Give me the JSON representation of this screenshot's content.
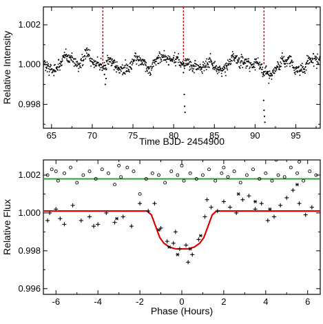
{
  "chart_data": [
    {
      "type": "scatter",
      "xlabel": "Time BJD- 2454900",
      "ylabel": "Relative Intensity",
      "xlim": [
        64,
        98
      ],
      "ylim": [
        0.9968,
        1.0029
      ],
      "xticks": [
        65,
        70,
        75,
        80,
        85,
        90,
        95
      ],
      "xtick_labels": [
        "65",
        "70",
        "75",
        "80",
        "85",
        "90",
        "95"
      ],
      "yticks": [
        0.998,
        1.0,
        1.002
      ],
      "ytick_labels": [
        "0.998",
        "1.000",
        "1.002"
      ],
      "grid": false,
      "series": [
        {
          "marker": "dot",
          "color": "#000000",
          "baseline": 1.0,
          "scatter_amplitude": 0.0005,
          "x_range": [
            64,
            98
          ],
          "points": [
            [
              71.3,
              1.0006
            ],
            [
              71.5,
              0.9995
            ],
            [
              71.6,
              0.999
            ],
            [
              71.7,
              0.9993
            ],
            [
              81.2,
              0.9996
            ],
            [
              81.3,
              0.9985
            ],
            [
              81.35,
              0.9979
            ],
            [
              81.4,
              0.9976
            ],
            [
              91.0,
              0.9995
            ],
            [
              91.05,
              0.9982
            ],
            [
              91.1,
              0.9977
            ],
            [
              91.15,
              0.9974
            ],
            [
              91.2,
              0.9971
            ]
          ]
        }
      ],
      "annotations": [
        {
          "type": "vertical-dashed-line",
          "x": 71.3,
          "color": "#e00000"
        },
        {
          "type": "vertical-dashed-line",
          "x": 81.2,
          "color": "#e00000"
        },
        {
          "type": "vertical-dashed-line",
          "x": 91.1,
          "color": "#e00000"
        }
      ]
    },
    {
      "type": "scatter",
      "xlabel": "Phase (Hours)",
      "ylabel": "Relative Flux",
      "xlim": [
        -6.6,
        6.6
      ],
      "ylim": [
        0.9957,
        1.0028
      ],
      "xticks": [
        -6,
        -4,
        -2,
        0,
        2,
        4,
        6
      ],
      "xtick_labels": [
        "-6",
        "-4",
        "-2",
        "0",
        "2",
        "4",
        "6"
      ],
      "yticks": [
        0.996,
        0.998,
        1.0,
        1.002
      ],
      "ytick_labels": [
        "0.996",
        "0.998",
        "1.000",
        "1.002"
      ],
      "grid": false,
      "series": [
        {
          "marker": "open-circle",
          "color": "#000000",
          "points": [
            [
              -6.4,
              1.002
            ],
            [
              -6.2,
              1.0023
            ],
            [
              -5.9,
              1.0017
            ],
            [
              -5.6,
              1.0021
            ],
            [
              -5.3,
              1.0024
            ],
            [
              -5.0,
              1.0016
            ],
            [
              -4.7,
              1.002
            ],
            [
              -4.4,
              1.0022
            ],
            [
              -4.1,
              1.0018
            ],
            [
              -3.8,
              1.0023
            ],
            [
              -3.5,
              1.0021
            ],
            [
              -3.2,
              1.0015
            ],
            [
              -2.9,
              1.0019
            ],
            [
              -2.6,
              1.0024
            ],
            [
              -2.3,
              1.0022
            ],
            [
              -2.0,
              1.001
            ],
            [
              -1.7,
              1.0018
            ],
            [
              -1.4,
              1.0021
            ],
            [
              -1.1,
              1.002
            ],
            [
              -0.8,
              1.0016
            ],
            [
              -0.5,
              1.0022
            ],
            [
              -0.2,
              1.002
            ],
            [
              0.1,
              1.0017
            ],
            [
              0.4,
              1.0021
            ],
            [
              0.7,
              1.0018
            ],
            [
              1.0,
              1.002
            ],
            [
              1.3,
              1.0023
            ],
            [
              1.6,
              1.0017
            ],
            [
              1.9,
              1.0021
            ],
            [
              2.2,
              1.0019
            ],
            [
              2.5,
              1.0022
            ],
            [
              2.8,
              1.0016
            ],
            [
              3.1,
              1.002
            ],
            [
              3.4,
              1.0023
            ],
            [
              3.7,
              1.0018
            ],
            [
              4.0,
              1.0021
            ],
            [
              4.3,
              1.0017
            ],
            [
              4.6,
              1.002
            ],
            [
              4.9,
              1.0019
            ],
            [
              5.2,
              1.0024
            ],
            [
              5.5,
              1.0021
            ],
            [
              5.8,
              1.0017
            ],
            [
              6.1,
              1.0022
            ],
            [
              6.4,
              1.002
            ],
            [
              5.6,
              1.0027
            ],
            [
              4.5,
              1.0028
            ],
            [
              0.0,
              1.0025
            ],
            [
              -3.0,
              1.0025
            ],
            [
              -6.0,
              1.0022
            ],
            [
              2.0,
              1.0024
            ]
          ]
        },
        {
          "marker": "plus",
          "color": "#000000",
          "points": [
            [
              -6.4,
              0.9996
            ],
            [
              -6.0,
              1.0002
            ],
            [
              -5.6,
              0.9994
            ],
            [
              -5.2,
              1.0004
            ],
            [
              -4.8,
              0.9996
            ],
            [
              -4.4,
              0.9998
            ],
            [
              -4.0,
              0.9994
            ],
            [
              -3.6,
              1.0
            ],
            [
              -3.2,
              0.9995
            ],
            [
              -2.8,
              0.9998
            ],
            [
              -2.4,
              0.9993
            ],
            [
              -2.0,
              1.0005
            ],
            [
              -1.6,
              1.0001
            ],
            [
              -1.3,
              1.0005
            ],
            [
              -1.0,
              0.9992
            ],
            [
              -0.7,
              0.9985
            ],
            [
              -0.4,
              0.9984
            ],
            [
              -0.1,
              0.9981
            ],
            [
              0.2,
              0.9983
            ],
            [
              0.5,
              0.9978
            ],
            [
              0.8,
              0.9986
            ],
            [
              1.1,
              0.9998
            ],
            [
              1.4,
              1.0003
            ],
            [
              1.7,
              1.0001
            ],
            [
              2.0,
              1.0006
            ],
            [
              2.3,
              1.0003
            ],
            [
              2.6,
              1.0
            ],
            [
              2.9,
              1.0007
            ],
            [
              3.2,
              1.0009
            ],
            [
              3.5,
              1.0002
            ],
            [
              3.8,
              1.0005
            ],
            [
              4.1,
              0.9996
            ],
            [
              4.4,
              0.9998
            ],
            [
              4.7,
              1.0004
            ],
            [
              5.0,
              1.0008
            ],
            [
              5.3,
              1.0012
            ],
            [
              5.6,
              1.0005
            ],
            [
              5.9,
              0.9999
            ],
            [
              6.2,
              1.0003
            ],
            [
              -5.8,
              0.9997
            ],
            [
              -4.2,
              0.9993
            ],
            [
              -0.3,
              0.999
            ],
            [
              0.3,
              0.9974
            ],
            [
              1.2,
              1.0007
            ],
            [
              -6.3,
              1.0
            ]
          ]
        },
        {
          "marker": "asterisk",
          "color": "#000000",
          "points": [
            [
              -3.1,
              0.9997
            ],
            [
              -1.1,
              0.9991
            ],
            [
              -0.6,
              0.9982
            ],
            [
              -0.2,
              0.9978
            ],
            [
              0.4,
              0.9981
            ],
            [
              0.9,
              0.9988
            ],
            [
              2.7,
              1.001
            ],
            [
              3.5,
              1.0006
            ],
            [
              4.2,
              1.0002
            ],
            [
              5.5,
              1.0015
            ]
          ]
        }
      ],
      "lines": [
        {
          "name": "",
          "color": "#2fa02f",
          "y": 1.0018
        },
        {
          "name": "",
          "color": "#e00000",
          "points": [
            [
              -6.6,
              1.0001
            ],
            [
              -1.65,
              1.0001
            ],
            [
              -1.45,
              0.9999
            ],
            [
              -1.25,
              0.9993
            ],
            [
              -1.05,
              0.9987
            ],
            [
              -0.85,
              0.9984
            ],
            [
              -0.6,
              0.9982
            ],
            [
              -0.3,
              0.9981
            ],
            [
              0.0,
              0.9981
            ],
            [
              0.3,
              0.9981
            ],
            [
              0.6,
              0.9982
            ],
            [
              0.85,
              0.9984
            ],
            [
              1.05,
              0.9987
            ],
            [
              1.25,
              0.9993
            ],
            [
              1.45,
              0.9999
            ],
            [
              1.65,
              1.0001
            ],
            [
              6.6,
              1.0001
            ]
          ]
        }
      ]
    }
  ]
}
